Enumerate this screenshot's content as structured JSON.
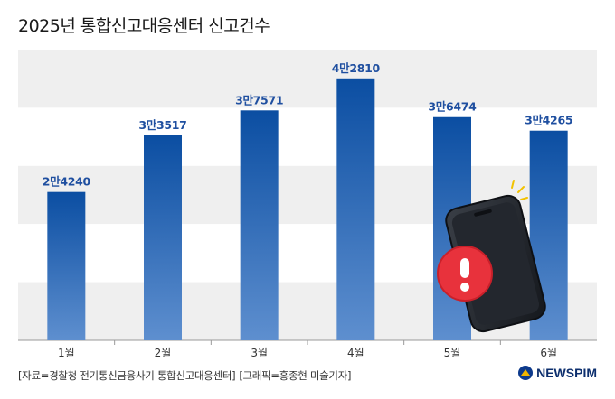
{
  "header": {
    "title": "2025년 통합신고대응센터 신고건수"
  },
  "chart_data": {
    "type": "bar",
    "title": "2025년 통합신고대응센터 신고건수",
    "categories": [
      "1월",
      "2월",
      "3월",
      "4월",
      "5월",
      "6월"
    ],
    "values": [
      24240,
      33517,
      37571,
      42810,
      36474,
      34265
    ],
    "data_labels": [
      "2만4240",
      "3만3517",
      "3만7571",
      "4만2810",
      "3만6474",
      "3만4265"
    ],
    "ylim": [
      0,
      47500
    ],
    "xlabel": "",
    "ylabel": "",
    "grid": "banded",
    "colors": {
      "bar_top": "#0b4ea2",
      "bar_bottom": "#5e8fcf",
      "label": "#1f4fa0",
      "band": "#efefef"
    }
  },
  "illustration": {
    "icon": "smartphone-alert-icon"
  },
  "footer": {
    "source": "[자료=경찰청 전기통신금융사기 통합신고대응센터]",
    "credit": "[그래픽=홍종현 미술기자]"
  },
  "brand": {
    "name": "NEWSPIM",
    "icon": "newspim-logo-icon"
  }
}
